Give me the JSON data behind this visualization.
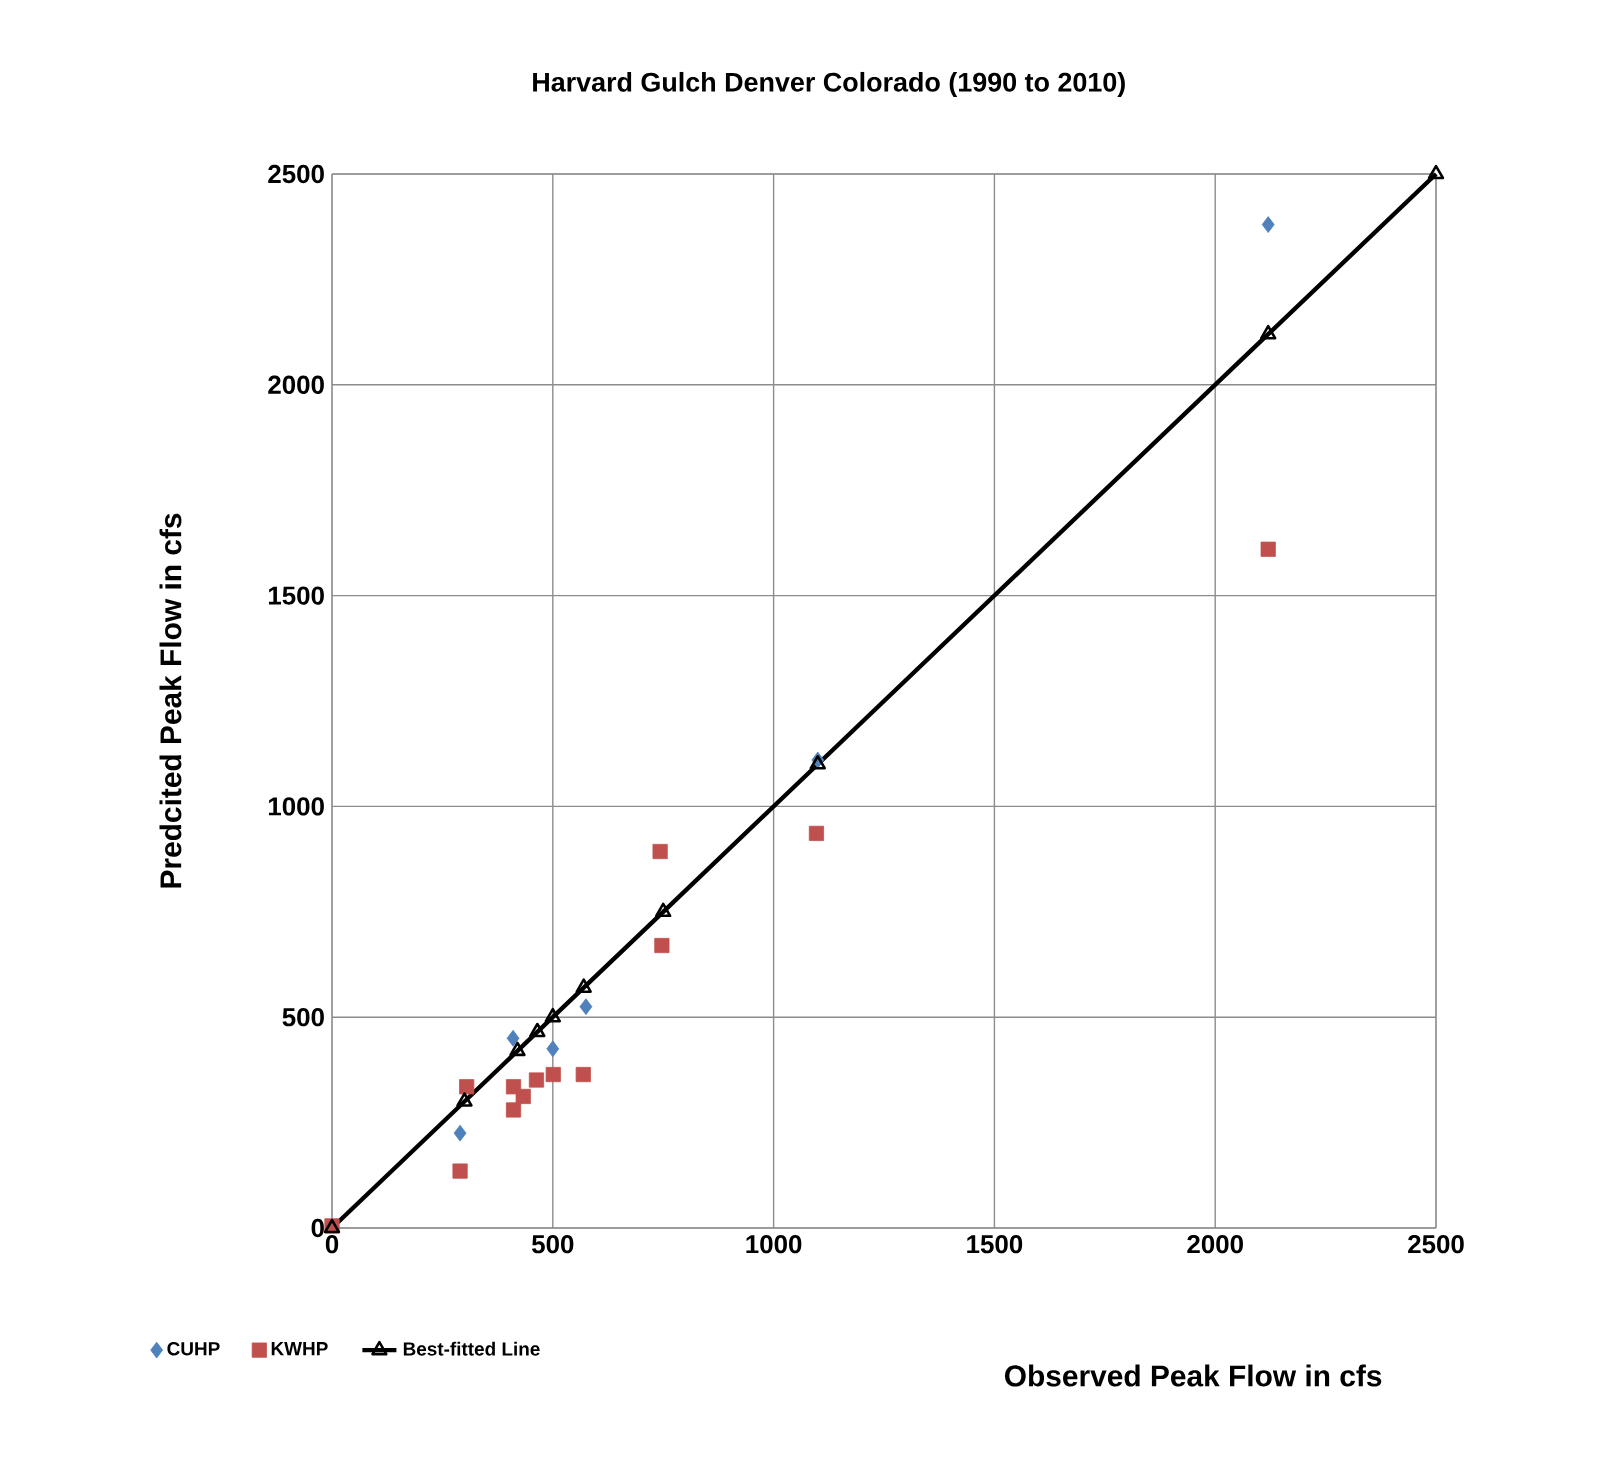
{
  "chart_data": {
    "type": "scatter",
    "title": "Harvard Gulch Denver Colorado (1990 to 2010)",
    "xlabel": "Observed Peak Flow in cfs",
    "ylabel": "Predcited Peak Flow in cfs",
    "xlim": [
      0,
      2500
    ],
    "ylim": [
      0,
      2500
    ],
    "xticks": [
      0,
      500,
      1000,
      1500,
      2000,
      2500
    ],
    "yticks": [
      0,
      500,
      1000,
      1500,
      2000,
      2500
    ],
    "grid": true,
    "legend": "bottom left",
    "series": [
      {
        "name": "CUHP",
        "marker": "diamond",
        "color": "#4f81bd",
        "x": [
          290,
          410,
          500,
          575,
          750,
          1100,
          2120
        ],
        "values": [
          225,
          450,
          425,
          525,
          null,
          1110,
          2380
        ]
      },
      {
        "name": "KWHP",
        "marker": "square",
        "color": "#c0504d",
        "x": [
          0,
          290,
          305,
          411,
          411,
          433,
          463,
          501,
          569,
          747,
          743,
          1097,
          2120
        ],
        "values": [
          5,
          135,
          335,
          335,
          280,
          312,
          351,
          364,
          364,
          670,
          893,
          936,
          1610
        ]
      },
      {
        "name": "Best-fitted Line",
        "type": "line",
        "marker": "triangle",
        "color": "#000000",
        "x": [
          0,
          300,
          420,
          465,
          500,
          570,
          750,
          1100,
          2120,
          2500
        ],
        "values": [
          0,
          300,
          420,
          465,
          500,
          570,
          750,
          1100,
          2120,
          2500
        ]
      }
    ]
  }
}
